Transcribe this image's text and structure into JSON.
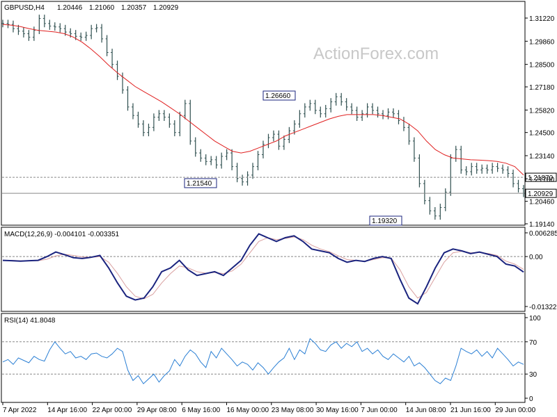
{
  "header": {
    "symbol": "GBPUSD,H4",
    "open": "1.20446",
    "high": "1.21060",
    "low": "1.20357",
    "close": "1.20929"
  },
  "watermark": "ActionForex.com",
  "colors": {
    "bars": "#2f4f4f",
    "ma": "#e02020",
    "macd": "#1a237e",
    "signal": "#d9a0a0",
    "rsi": "#2a7fd4",
    "grid": "#888888"
  },
  "chart_data": [
    {
      "type": "line",
      "panel": "price",
      "ylim": [
        1.1914,
        1.3122
      ],
      "yticks": [
        "1.31220",
        "1.29860",
        "1.28500",
        "1.27180",
        "1.25820",
        "1.24500",
        "1.23140",
        "1.21780",
        "1.20460",
        "1.19140"
      ],
      "xticks": [
        "7 Apr 2022",
        "14 Apr 16:00",
        "22 Apr 00:00",
        "29 Apr 08:00",
        "6 May 16:00",
        "16 May 00:00",
        "23 May 08:00",
        "30 May 16:00",
        "7 Jun 00:00",
        "14 Jun 08:00",
        "21 Jun 16:00",
        "29 Jun 00:00"
      ],
      "series": [
        {
          "kind": "ohlc",
          "values": [
            1.309,
            1.3085,
            1.306,
            1.3045,
            1.303,
            1.301,
            1.305,
            1.312,
            1.309,
            1.3075,
            1.307,
            1.306,
            1.304,
            1.303,
            1.3015,
            1.301,
            1.302,
            1.306,
            1.3065,
            1.3,
            1.292,
            1.285,
            1.278,
            1.27,
            1.26,
            1.255,
            1.25,
            1.245,
            1.248,
            1.254,
            1.256,
            1.254,
            1.25,
            1.245,
            1.255,
            1.262,
            1.24,
            1.233,
            1.23,
            1.228,
            1.229,
            1.226,
            1.231,
            1.233,
            1.225,
            1.218,
            1.216,
            1.22,
            1.225,
            1.232,
            1.238,
            1.242,
            1.244,
            1.237,
            1.241,
            1.246,
            1.25,
            1.256,
            1.26,
            1.262,
            1.258,
            1.256,
            1.259,
            1.263,
            1.266,
            1.263,
            1.26,
            1.258,
            1.254,
            1.256,
            1.26,
            1.258,
            1.256,
            1.255,
            1.257,
            1.256,
            1.252,
            1.248,
            1.24,
            1.23,
            1.215,
            1.205,
            1.199,
            1.196,
            1.201,
            1.21,
            1.23,
            1.235,
            1.223,
            1.222,
            1.225,
            1.223,
            1.224,
            1.223,
            1.225,
            1.224,
            1.223,
            1.221,
            1.215,
            1.212,
            1.2093
          ],
          "name": ""
        },
        {
          "kind": "ma",
          "values": [
            1.3085,
            1.308,
            1.3072,
            1.306,
            1.305,
            1.3045,
            1.304,
            1.303,
            1.301,
            1.298,
            1.294,
            1.2895,
            1.2845,
            1.28,
            1.276,
            1.272,
            1.269,
            1.266,
            1.263,
            1.2595,
            1.256,
            1.252,
            1.248,
            1.244,
            1.24,
            1.237,
            1.234,
            1.233,
            1.234,
            1.236,
            1.238,
            1.24,
            1.243,
            1.245,
            1.247,
            1.249,
            1.251,
            1.253,
            1.2545,
            1.2555,
            1.2555,
            1.2555,
            1.2555,
            1.255,
            1.254,
            1.253,
            1.25,
            1.246,
            1.24,
            1.235,
            1.232,
            1.23,
            1.2295,
            1.229,
            1.2288,
            1.2285,
            1.228,
            1.227,
            1.225,
            1.22
          ],
          "name": ""
        }
      ],
      "annotations": [
        {
          "text": "1.26660",
          "value": 1.2666
        },
        {
          "text": "1.21540",
          "value": 1.2154
        },
        {
          "text": "1.19320",
          "value": 1.1932
        }
      ],
      "levels": [
        {
          "text": "1.21870",
          "value": 1.2187,
          "style": "dashed"
        },
        {
          "text": "1.20929",
          "value": 1.20929,
          "style": "solid"
        }
      ]
    },
    {
      "type": "line",
      "panel": "macd",
      "title": "MACD(12,26,9) -0.004101 -0.003351",
      "ylim": [
        -0.013223,
        0.006285
      ],
      "yticks": [
        "0.006285",
        "0.00",
        "-0.013223"
      ],
      "series": [
        {
          "kind": "macd",
          "values": [
            -0.001,
            -0.0011,
            -0.0012,
            -0.0011,
            -0.001,
            0.0,
            0.0012,
            0.0005,
            -0.0003,
            -0.0005,
            -0.0002,
            0.0003,
            -0.003,
            -0.007,
            -0.0105,
            -0.0115,
            -0.011,
            -0.008,
            -0.004,
            -0.003,
            -0.001,
            -0.0035,
            -0.005,
            -0.0045,
            -0.004,
            -0.005,
            -0.003,
            -0.001,
            0.003,
            0.006,
            0.005,
            0.004,
            0.005,
            0.0055,
            0.004,
            0.002,
            0.0015,
            0.001,
            -0.0005,
            -0.0015,
            -0.001,
            -0.0013,
            -0.0005,
            0.0,
            -0.0005,
            -0.006,
            -0.011,
            -0.0125,
            -0.008,
            -0.003,
            0.001,
            0.002,
            0.0015,
            0.0008,
            0.0012,
            0.0006,
            0.0,
            -0.002,
            -0.0025,
            -0.0041
          ]
        },
        {
          "kind": "signal",
          "values": [
            -0.001,
            -0.001,
            -0.0011,
            -0.0011,
            -0.0011,
            -0.0007,
            0.0002,
            0.0006,
            0.0003,
            -0.0001,
            -0.0002,
            0.0,
            -0.0015,
            -0.0045,
            -0.008,
            -0.0105,
            -0.0112,
            -0.01,
            -0.007,
            -0.0045,
            -0.0025,
            -0.003,
            -0.004,
            -0.0044,
            -0.0042,
            -0.0045,
            -0.0038,
            -0.002,
            0.001,
            0.004,
            0.005,
            0.0045,
            0.0048,
            0.0052,
            0.0045,
            0.003,
            0.002,
            0.0013,
            0.0002,
            -0.0008,
            -0.001,
            -0.0012,
            -0.0008,
            -0.0003,
            -0.0004,
            -0.0035,
            -0.008,
            -0.011,
            -0.0095,
            -0.0055,
            -0.0015,
            0.001,
            0.0014,
            0.001,
            0.0011,
            0.0008,
            0.0003,
            -0.0012,
            -0.002,
            -0.0034
          ]
        }
      ]
    },
    {
      "type": "line",
      "panel": "rsi",
      "title": "RSI(14) 41.8048",
      "ylim": [
        0,
        100
      ],
      "yticks": [
        "100",
        "70",
        "30",
        "0"
      ],
      "levels": [
        70,
        30
      ],
      "series": [
        {
          "kind": "rsi",
          "values": [
            45,
            48,
            42,
            50,
            47,
            44,
            52,
            48,
            46,
            60,
            70,
            62,
            55,
            58,
            50,
            52,
            48,
            55,
            56,
            52,
            50,
            55,
            62,
            58,
            35,
            22,
            28,
            18,
            24,
            30,
            20,
            28,
            34,
            48,
            40,
            52,
            60,
            55,
            45,
            38,
            58,
            50,
            62,
            55,
            48,
            40,
            45,
            42,
            35,
            44,
            38,
            30,
            38,
            45,
            50,
            62,
            48,
            60,
            55,
            74,
            68,
            60,
            58,
            66,
            70,
            62,
            68,
            64,
            70,
            58,
            62,
            55,
            60,
            52,
            48,
            55,
            50,
            45,
            52,
            40,
            44,
            38,
            30,
            22,
            18,
            25,
            22,
            40,
            62,
            58,
            55,
            60,
            52,
            58,
            50,
            62,
            55,
            48,
            40,
            45,
            42
          ]
        }
      ]
    }
  ]
}
